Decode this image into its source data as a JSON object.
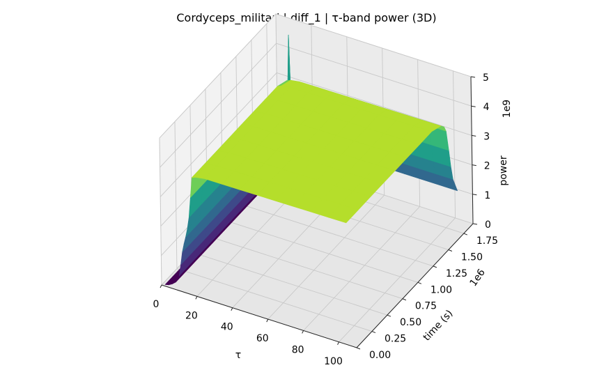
{
  "chart_data": {
    "type": "surface3d",
    "title": "Cordyceps_militari | diff_1 | τ-band power (3D)",
    "xlabel": "τ",
    "ylabel": "time (s)",
    "zlabel": "power",
    "x_ticks": [
      "0",
      "20",
      "40",
      "60",
      "80",
      "100"
    ],
    "y_ticks": [
      "0.00",
      "0.25",
      "0.50",
      "0.75",
      "1.00",
      "1.25",
      "1.50",
      "1.75"
    ],
    "y_offset_label": "1e6",
    "z_ticks": [
      "0",
      "1",
      "2",
      "3",
      "4",
      "5"
    ],
    "z_offset_label": "1e9",
    "xlim": [
      0,
      110
    ],
    "ylim": [
      0,
      1.9
    ],
    "zlim": [
      0,
      5
    ],
    "colormap": "viridis",
    "grid": true,
    "tau_profile": {
      "tau": [
        2,
        5,
        8,
        10,
        11,
        12,
        13,
        14,
        15,
        16,
        17,
        18,
        20,
        25,
        110
      ],
      "power": [
        0.05,
        0.1,
        0.25,
        0.5,
        0.9,
        1.35,
        1.65,
        1.9,
        2.2,
        2.6,
        3.3,
        4.0,
        4.05,
        4.1,
        4.15
      ]
    },
    "time_decay": {
      "time": [
        0.0,
        0.3,
        0.6,
        0.9,
        1.2,
        1.5,
        1.6,
        1.63,
        1.67,
        1.72,
        1.8
      ],
      "factor": [
        1.0,
        1.0,
        1.0,
        1.0,
        1.0,
        1.0,
        0.93,
        0.88,
        0.7,
        0.45,
        0.3
      ]
    },
    "spike": {
      "tau": 14,
      "time": 1.7,
      "power": 5.0
    }
  }
}
